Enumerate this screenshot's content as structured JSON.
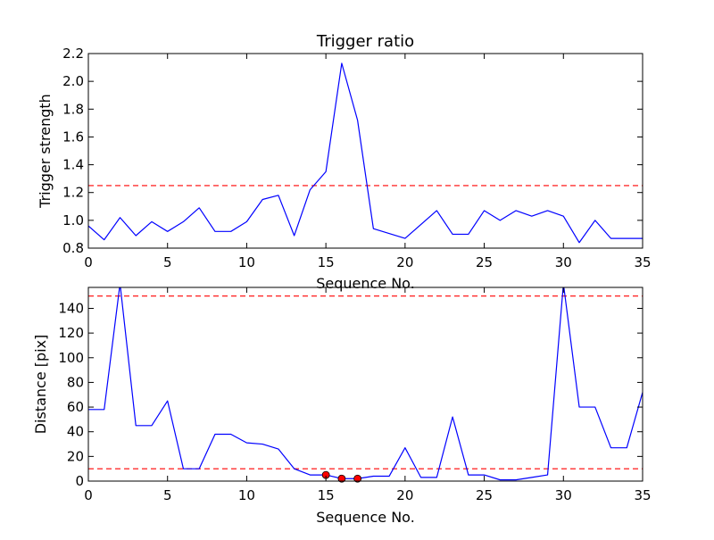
{
  "chart_data": [
    {
      "type": "line",
      "title": "Trigger ratio",
      "xlabel": "Sequence No.",
      "ylabel": "Trigger strength",
      "xlim": [
        0,
        35
      ],
      "ylim": [
        0.8,
        2.2
      ],
      "xticks": [
        0,
        5,
        10,
        15,
        20,
        25,
        30,
        35
      ],
      "yticks": [
        0.8,
        1.0,
        1.2,
        1.4,
        1.6,
        1.8,
        2.0,
        2.2
      ],
      "ytick_labels": [
        "0.8",
        "1.0",
        "1.2",
        "1.4",
        "1.6",
        "1.8",
        "2.0",
        "2.2"
      ],
      "grid": false,
      "series": [
        {
          "color": "#0000ff",
          "style": "solid",
          "x": [
            0,
            1,
            2,
            3,
            4,
            5,
            6,
            7,
            8,
            9,
            10,
            11,
            12,
            13,
            14,
            15,
            16,
            17,
            18,
            20,
            22,
            23,
            24,
            25,
            26,
            27,
            28,
            29,
            30,
            31,
            32,
            33,
            34,
            35
          ],
          "y": [
            0.96,
            0.86,
            1.02,
            0.89,
            0.99,
            0.92,
            0.99,
            1.09,
            0.92,
            0.92,
            0.99,
            1.15,
            1.18,
            0.89,
            1.22,
            1.35,
            2.13,
            1.72,
            0.94,
            0.87,
            1.07,
            0.9,
            0.9,
            1.07,
            1.0,
            1.07,
            1.03,
            1.07,
            1.03,
            0.84,
            1.0,
            0.87,
            0.87,
            0.87
          ]
        }
      ],
      "reference_lines": [
        {
          "y": 1.25,
          "color": "#ff0000",
          "style": "dashed"
        }
      ]
    },
    {
      "type": "line",
      "title": "",
      "xlabel": "Sequence No.",
      "ylabel": "Distance [pix]",
      "xlim": [
        0,
        35
      ],
      "ylim": [
        0,
        157
      ],
      "xticks": [
        0,
        5,
        10,
        15,
        20,
        25,
        30,
        35
      ],
      "yticks": [
        0,
        20,
        40,
        60,
        80,
        100,
        120,
        140
      ],
      "ytick_labels": [
        "0",
        "20",
        "40",
        "60",
        "80",
        "100",
        "120",
        "140"
      ],
      "grid": false,
      "series": [
        {
          "color": "#0000ff",
          "style": "solid",
          "x": [
            0,
            1,
            2,
            3,
            4,
            5,
            6,
            7,
            8,
            9,
            10,
            11,
            12,
            13,
            14,
            15,
            16,
            17,
            18,
            19,
            20,
            21,
            22,
            23,
            24,
            25,
            26,
            27,
            28,
            29,
            30,
            31,
            32,
            33,
            34,
            35
          ],
          "y": [
            58,
            58,
            160,
            45,
            45,
            65,
            10,
            10,
            38,
            38,
            31,
            30,
            26,
            10,
            5,
            5,
            2,
            2,
            4,
            4,
            27,
            3,
            3,
            52,
            5,
            5,
            1,
            1,
            3,
            5,
            160,
            60,
            60,
            27,
            27,
            72
          ]
        }
      ],
      "markers": {
        "color": "#ff0000",
        "x": [
          15,
          16,
          17
        ],
        "y": [
          5,
          2,
          2
        ]
      },
      "reference_lines": [
        {
          "y": 150,
          "color": "#ff0000",
          "style": "dashed"
        },
        {
          "y": 10,
          "color": "#ff0000",
          "style": "dashed"
        }
      ]
    }
  ]
}
